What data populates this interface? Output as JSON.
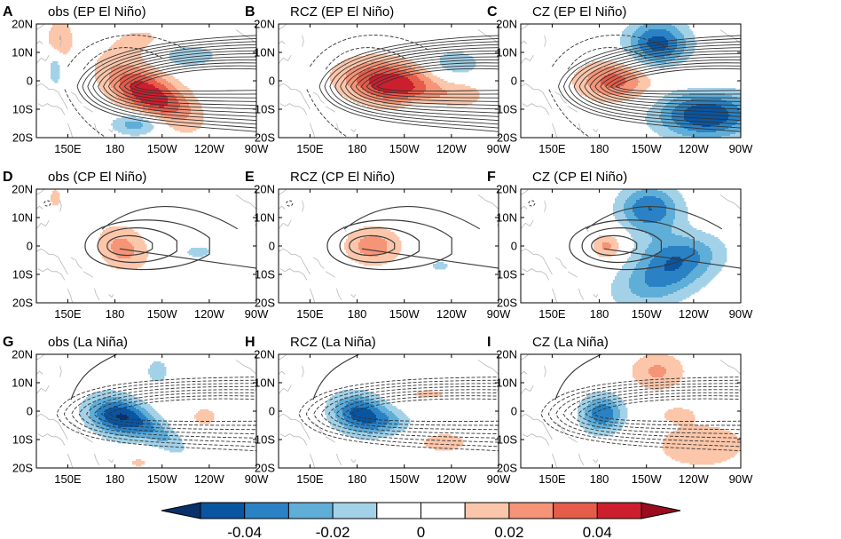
{
  "chart_data": [
    {
      "type": "heatmap",
      "letter": "A",
      "title": "obs (EP El Niño)",
      "col": 0,
      "row": 0,
      "blobs": [
        {
          "lon": -158,
          "lat": -5,
          "sx": 20,
          "sy": 6,
          "amp": 0.049,
          "rot": -14
        },
        {
          "lon": -135,
          "lat": 9,
          "sx": 14,
          "sy": 3,
          "amp": -0.021,
          "rot": 0
        },
        {
          "lon": -165,
          "lat": -15,
          "sx": 12,
          "sy": 3,
          "amp": -0.03,
          "rot": 0
        },
        {
          "lon": 145,
          "lat": 15,
          "sx": 6,
          "sy": 5,
          "amp": 0.02,
          "rot": 0
        },
        {
          "lon": 142,
          "lat": 4,
          "sx": 3,
          "sy": 4,
          "amp": -0.02,
          "rot": 0
        },
        {
          "lon": -163,
          "lat": 14,
          "sx": 18,
          "sy": 5,
          "amp": 0.012,
          "rot": 0
        }
      ],
      "contour": {
        "kind": "posFan",
        "n": 12
      },
      "dashed": "north"
    },
    {
      "type": "heatmap",
      "letter": "B",
      "title": "RCZ (EP El Niño)",
      "col": 1,
      "row": 0,
      "blobs": [
        {
          "lon": -158,
          "lat": -1,
          "sx": 22,
          "sy": 5.5,
          "amp": 0.05,
          "rot": -4
        },
        {
          "lon": -118,
          "lat": 6,
          "sx": 12,
          "sy": 3.5,
          "amp": -0.02,
          "rot": 0
        },
        {
          "lon": -140,
          "lat": -11,
          "sx": 10,
          "sy": 3,
          "amp": -0.017,
          "rot": 0
        },
        {
          "lon": -112,
          "lat": -5,
          "sx": 10,
          "sy": 3,
          "amp": 0.013,
          "rot": 0
        }
      ],
      "contour": {
        "kind": "posFan",
        "n": 12
      },
      "dashed": "north"
    },
    {
      "type": "heatmap",
      "letter": "C",
      "title": "CZ (EP El Niño)",
      "col": 2,
      "row": 0,
      "blobs": [
        {
          "lon": -170,
          "lat": 0,
          "sx": 17,
          "sy": 5,
          "amp": 0.035,
          "rot": 0
        },
        {
          "lon": -143,
          "lat": 13,
          "sx": 14,
          "sy": 6,
          "amp": -0.045,
          "rot": 0
        },
        {
          "lon": -112,
          "lat": -12,
          "sx": 22,
          "sy": 6,
          "amp": -0.05,
          "rot": 0
        },
        {
          "lon": -118,
          "lat": 2,
          "sx": 14,
          "sy": 3,
          "amp": 0.012,
          "rot": 0
        }
      ],
      "contour": {
        "kind": "posFan",
        "n": 12
      },
      "dashed": "north"
    },
    {
      "type": "heatmap",
      "letter": "D",
      "title": "obs (CP El Niño)",
      "col": 0,
      "row": 1,
      "blobs": [
        {
          "lon": -175,
          "lat": -1,
          "sx": 12,
          "sy": 6,
          "amp": 0.024,
          "rot": -8
        },
        {
          "lon": -127,
          "lat": -2,
          "sx": 8,
          "sy": 2,
          "amp": -0.014,
          "rot": 0
        },
        {
          "lon": 142,
          "lat": 17,
          "sx": 3,
          "sy": 3,
          "amp": 0.015,
          "rot": 0
        },
        {
          "lon": -172,
          "lat": -15,
          "sx": 6,
          "sy": 4,
          "amp": -0.01,
          "rot": 0
        }
      ],
      "contour": {
        "kind": "cpFan",
        "n": 3
      },
      "dashed": "none"
    },
    {
      "type": "heatmap",
      "letter": "E",
      "title": "RCZ (CP El Niño)",
      "col": 1,
      "row": 1,
      "blobs": [
        {
          "lon": -170,
          "lat": 0,
          "sx": 13,
          "sy": 5,
          "amp": 0.026,
          "rot": 0
        },
        {
          "lon": -127,
          "lat": -7,
          "sx": 8,
          "sy": 2,
          "amp": -0.012,
          "rot": 0
        }
      ],
      "contour": {
        "kind": "cpFan",
        "n": 3
      },
      "dashed": "none"
    },
    {
      "type": "heatmap",
      "letter": "F",
      "title": "CZ (CP El Niño)",
      "col": 2,
      "row": 1,
      "blobs": [
        {
          "lon": -175,
          "lat": 0,
          "sx": 7,
          "sy": 3.5,
          "amp": 0.024,
          "rot": 0
        },
        {
          "lon": -148,
          "lat": 13,
          "sx": 14,
          "sy": 6,
          "amp": -0.04,
          "rot": 0
        },
        {
          "lon": -138,
          "lat": -10,
          "sx": 22,
          "sy": 7,
          "amp": -0.035,
          "rot": 10
        },
        {
          "lon": -130,
          "lat": -2,
          "sx": 18,
          "sy": 5,
          "amp": -0.015,
          "rot": 0
        }
      ],
      "contour": {
        "kind": "cpFan",
        "n": 3
      },
      "dashed": "none"
    },
    {
      "type": "heatmap",
      "letter": "G",
      "title": "obs (La Niña)",
      "col": 0,
      "row": 2,
      "blobs": [
        {
          "lon": -178,
          "lat": -2,
          "sx": 14,
          "sy": 5,
          "amp": -0.048,
          "rot": -6
        },
        {
          "lon": -152,
          "lat": -8,
          "sx": 14,
          "sy": 3.5,
          "amp": -0.02,
          "rot": -18
        },
        {
          "lon": -123,
          "lat": -2,
          "sx": 6,
          "sy": 2.5,
          "amp": 0.017,
          "rot": 0
        },
        {
          "lon": -165,
          "lat": -18,
          "sx": 8,
          "sy": 2,
          "amp": 0.012,
          "rot": 0
        },
        {
          "lon": -153,
          "lat": 14,
          "sx": 6,
          "sy": 4,
          "amp": -0.015,
          "rot": 0
        }
      ],
      "contour": {
        "kind": "negFan",
        "n": 8
      },
      "dashed": "negFan",
      "solidNorth": true
    },
    {
      "type": "heatmap",
      "letter": "H",
      "title": "RCZ (La Niña)",
      "col": 1,
      "row": 2,
      "blobs": [
        {
          "lon": -178,
          "lat": -1,
          "sx": 13,
          "sy": 5,
          "amp": -0.045,
          "rot": -4
        },
        {
          "lon": -125,
          "lat": -11,
          "sx": 14,
          "sy": 3,
          "amp": 0.015,
          "rot": 0
        },
        {
          "lon": -135,
          "lat": 6,
          "sx": 14,
          "sy": 2,
          "amp": 0.012,
          "rot": 0
        },
        {
          "lon": -158,
          "lat": -4,
          "sx": 10,
          "sy": 3,
          "amp": -0.015,
          "rot": 0
        }
      ],
      "contour": {
        "kind": "negFan",
        "n": 8
      },
      "dashed": "negFan",
      "solidNorth": true
    },
    {
      "type": "heatmap",
      "letter": "I",
      "title": "CZ (La Niña)",
      "col": 2,
      "row": 2,
      "blobs": [
        {
          "lon": -178,
          "lat": -1,
          "sx": 10,
          "sy": 5,
          "amp": -0.038,
          "rot": 0
        },
        {
          "lon": -143,
          "lat": 14,
          "sx": 13,
          "sy": 5,
          "amp": 0.022,
          "rot": 0
        },
        {
          "lon": -115,
          "lat": -12,
          "sx": 26,
          "sy": 7,
          "amp": 0.016,
          "rot": 0
        },
        {
          "lon": -130,
          "lat": -1,
          "sx": 8,
          "sy": 2,
          "amp": 0.012,
          "rot": 0
        }
      ],
      "contour": {
        "kind": "negFan",
        "n": 8
      },
      "dashed": "negFan",
      "solidNorth": true
    }
  ],
  "axes": {
    "x_ticks": [
      "150E",
      "180",
      "150W",
      "120W",
      "90W"
    ],
    "x_tick_lons": [
      150,
      180,
      210,
      240,
      270
    ],
    "y_ticks": [
      "20N",
      "10N",
      "0",
      "10S",
      "20S"
    ],
    "y_tick_lats": [
      20,
      10,
      0,
      -10,
      -20
    ],
    "lon_range": [
      130,
      270
    ],
    "lat_range": [
      -20,
      20
    ]
  },
  "colorbar": {
    "levels": [
      -0.05,
      -0.04,
      -0.03,
      -0.02,
      -0.01,
      0,
      0.01,
      0.02,
      0.03,
      0.04,
      0.05
    ],
    "colors": [
      "#0a55a0",
      "#2a82c4",
      "#5faed8",
      "#a3d2e8",
      "#ffffff",
      "#ffffff",
      "#fcc6aa",
      "#f69477",
      "#e55c4a",
      "#cc1f2e"
    ],
    "under_color": "#08306b",
    "over_color": "#9b0c1e",
    "labels": [
      "-0.04",
      "-0.02",
      "0",
      "0.02",
      "0.04"
    ],
    "label_values": [
      -0.04,
      -0.02,
      0,
      0.02,
      0.04
    ]
  }
}
